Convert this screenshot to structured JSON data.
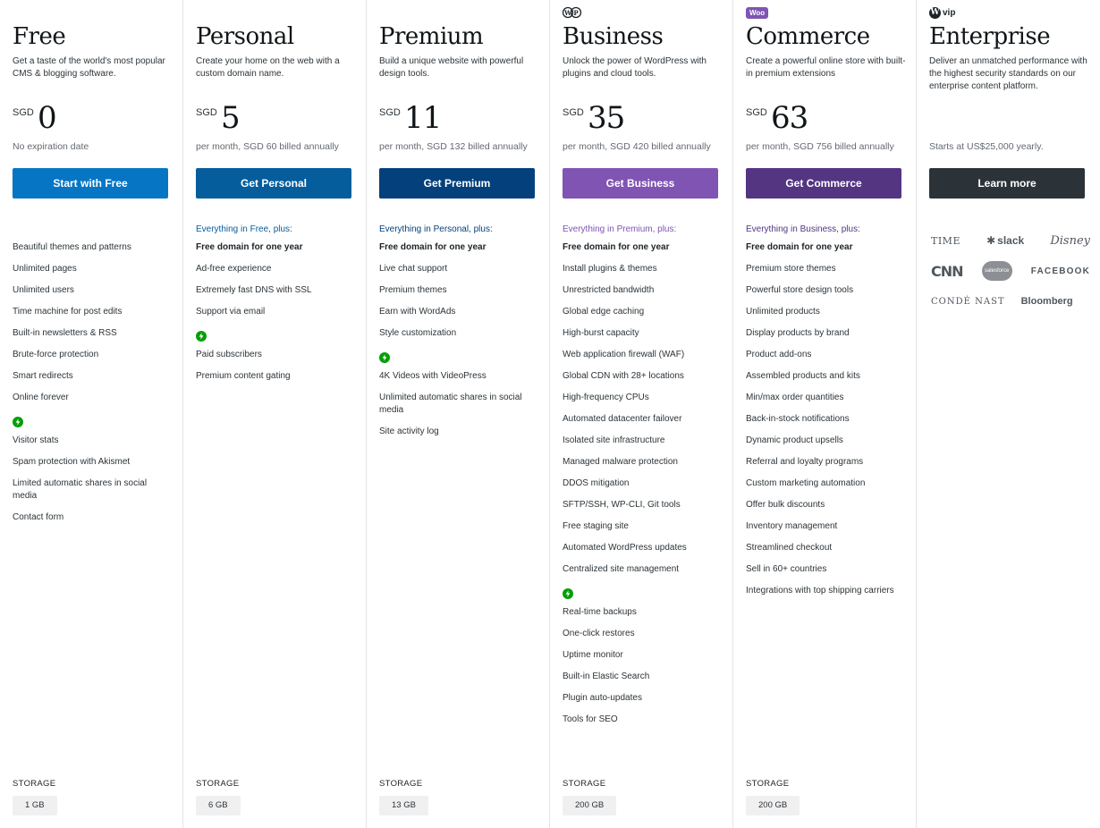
{
  "plans": [
    {
      "name": "Free",
      "logo": "",
      "tagline": "Get a taste of the world's most popular CMS & blogging software.",
      "currency": "SGD",
      "amount": "0",
      "billing": "No expiration date",
      "cta": "Start with Free",
      "cta_color": "#0675c4",
      "plus_label": "",
      "features": [
        "Beautiful themes and patterns",
        "Unlimited pages",
        "Unlimited users",
        "Time machine for post edits",
        "Built-in newsletters & RSS",
        "Brute-force protection",
        "Smart redirects",
        "Online forever"
      ],
      "bold_features": [],
      "boost_features": [
        "Visitor stats",
        "Spam protection with Akismet",
        "Limited automatic shares in social media",
        "Contact form"
      ],
      "storage_label": "STORAGE",
      "storage": "1 GB"
    },
    {
      "name": "Personal",
      "logo": "",
      "tagline": "Create your home on the web with a custom domain name.",
      "currency": "SGD",
      "amount": "5",
      "billing": "per month, SGD 60 billed annually",
      "cta": "Get Personal",
      "cta_color": "#055d9c",
      "plus_label": "Everything in Free, plus:",
      "plus_color": "#055d9c",
      "features": [
        "Free domain for one year",
        "Ad-free experience",
        "Extremely fast DNS with SSL",
        "Support via email"
      ],
      "bold_features": [
        "Free domain for one year"
      ],
      "boost_features": [
        "Paid subscribers",
        "Premium content gating"
      ],
      "storage_label": "STORAGE",
      "storage": "6 GB"
    },
    {
      "name": "Premium",
      "logo": "",
      "tagline": "Build a unique website with powerful design tools.",
      "currency": "SGD",
      "amount": "11",
      "billing": "per month, SGD 132 billed annually",
      "cta": "Get Premium",
      "cta_color": "#04407b",
      "plus_label": "Everything in Personal, plus:",
      "plus_color": "#04407b",
      "features": [
        "Free domain for one year",
        "Live chat support",
        "Premium themes",
        "Earn with WordAds",
        "Style customization"
      ],
      "bold_features": [
        "Free domain for one year"
      ],
      "boost_features": [
        "4K Videos with VideoPress",
        "Unlimited automatic shares in social media",
        "Site activity log"
      ],
      "storage_label": "STORAGE",
      "storage": "13 GB"
    },
    {
      "name": "Business",
      "logo": "wordpress-plus-logo",
      "tagline": "Unlock the power of WordPress with plugins and cloud tools.",
      "currency": "SGD",
      "amount": "35",
      "billing": "per month, SGD 420 billed annually",
      "cta": "Get Business",
      "cta_color": "#7f54b3",
      "plus_label": "Everything in Premium, plus:",
      "plus_color": "#7f54b3",
      "features": [
        "Free domain for one year",
        "Install plugins & themes",
        "Unrestricted bandwidth",
        "Global edge caching",
        "High-burst capacity",
        "Web application firewall (WAF)",
        "Global CDN with 28+ locations",
        "High-frequency CPUs",
        "Automated datacenter failover",
        "Isolated site infrastructure",
        "Managed malware protection",
        "DDOS mitigation",
        "SFTP/SSH, WP-CLI, Git tools",
        "Free staging site",
        "Automated WordPress updates",
        "Centralized site management"
      ],
      "bold_features": [
        "Free domain for one year"
      ],
      "boost_features": [
        "Real-time backups",
        "One-click restores",
        "Uptime monitor",
        "Built-in Elastic Search",
        "Plugin auto-updates",
        "Tools for SEO"
      ],
      "storage_label": "STORAGE",
      "storage": "200 GB"
    },
    {
      "name": "Commerce",
      "logo": "woo-logo",
      "logo_text": "Woo",
      "tagline": "Create a powerful online store with built-in premium extensions",
      "currency": "SGD",
      "amount": "63",
      "billing": "per month, SGD 756 billed annually",
      "cta": "Get Commerce",
      "cta_color": "#533582",
      "plus_label": "Everything in Business, plus:",
      "plus_color": "#533582",
      "features": [
        "Free domain for one year",
        "Premium store themes",
        "Powerful store design tools",
        "Unlimited products",
        "Display products by brand",
        "Product add-ons",
        "Assembled products and kits",
        "Min/max order quantities",
        "Back-in-stock notifications",
        "Dynamic product upsells",
        "Referral and loyalty programs",
        "Custom marketing automation",
        "Offer bulk discounts",
        "Inventory management",
        "Streamlined checkout",
        "Sell in 60+ countries",
        "Integrations with top shipping carriers"
      ],
      "bold_features": [
        "Free domain for one year"
      ],
      "boost_features": [],
      "storage_label": "STORAGE",
      "storage": "200 GB"
    },
    {
      "name": "Enterprise",
      "logo": "wpvip-logo",
      "logo_text": "vip",
      "tagline": "Deliver an unmatched performance with the highest security standards on our enterprise content platform.",
      "currency": "",
      "amount": "",
      "billing": "Starts at US$25,000 yearly.",
      "cta": "Learn more",
      "cta_color": "#2c3338",
      "plus_label": "",
      "features": [],
      "bold_features": [],
      "boost_features": [],
      "storage_label": "",
      "storage": ""
    }
  ],
  "enterprise_logos": [
    [
      "TIME",
      "slack",
      "Disney"
    ],
    [
      "CNN",
      "salesforce",
      "FACEBOOK"
    ],
    [
      "CONDÉ NAST",
      "Bloomberg"
    ]
  ],
  "colors": {
    "boost_icon": "#069e08"
  }
}
